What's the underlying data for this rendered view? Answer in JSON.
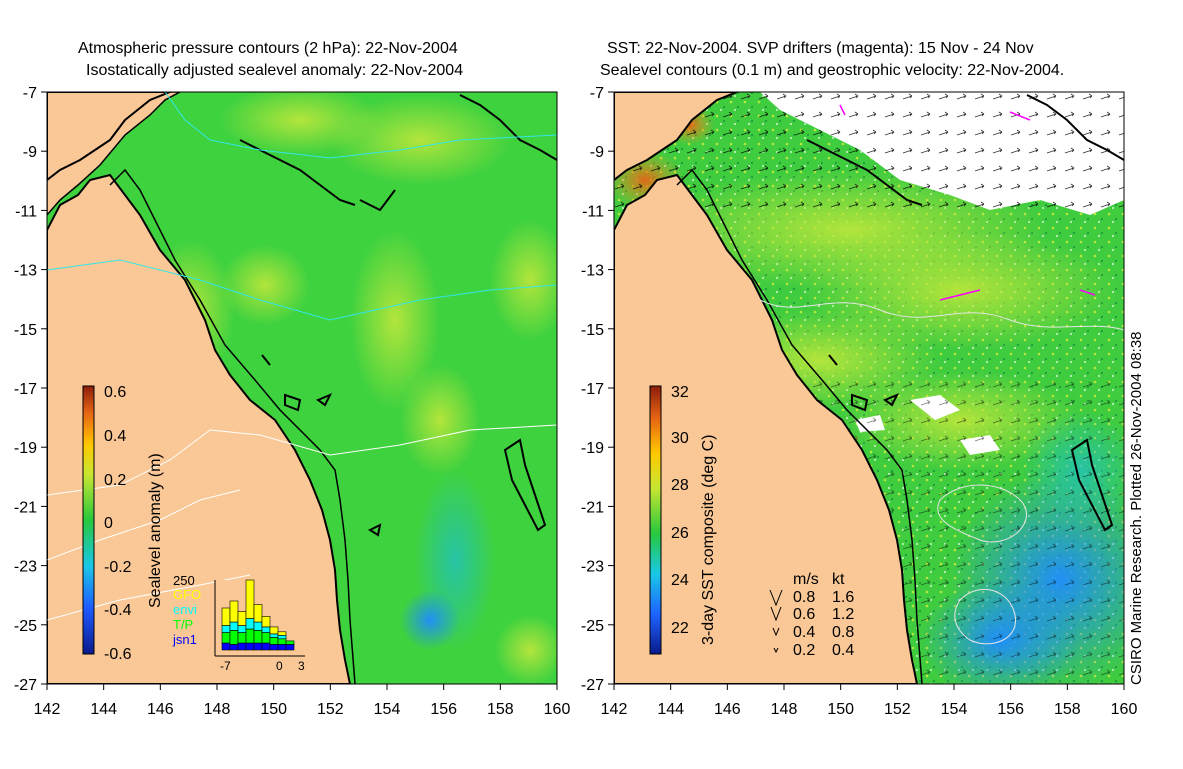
{
  "left_panel": {
    "title_line1": "Atmospheric pressure contours (2 hPa): 22-Nov-2004",
    "title_line2": "Isostatically adjusted sealevel anomaly: 22-Nov-2004",
    "colorbar": {
      "label": "Sealevel anomaly (m)",
      "ticks": [
        "0.6",
        "0.4",
        "0.2",
        "0",
        "-0.2",
        "-0.4",
        "-0.6"
      ]
    },
    "inset": {
      "ymax_label": "250",
      "legend": [
        {
          "label": "GFO",
          "color": "#ffff00"
        },
        {
          "label": "envi",
          "color": "#00ffff"
        },
        {
          "label": "T/P",
          "color": "#00ff00"
        },
        {
          "label": "jsn1",
          "color": "#0000ff"
        }
      ],
      "xticks": [
        "-7",
        "0",
        "3"
      ]
    }
  },
  "right_panel": {
    "title_line1": "SST: 22-Nov-2004. SVP drifters (magenta): 15 Nov - 24 Nov",
    "title_line2": "Sealevel contours (0.1 m) and geostrophic velocity: 22-Nov-2004.",
    "colorbar": {
      "label": "3-day SST composite (deg C)",
      "ticks": [
        "32",
        "30",
        "28",
        "26",
        "24",
        "22"
      ]
    },
    "velocity_legend": {
      "header_ms": "m/s",
      "header_kt": "kt",
      "rows": [
        {
          "ms": "0.8",
          "kt": "1.6"
        },
        {
          "ms": "0.6",
          "kt": "1.2"
        },
        {
          "ms": "0.4",
          "kt": "0.8"
        },
        {
          "ms": "0.2",
          "kt": "0.4"
        }
      ]
    }
  },
  "axes": {
    "lon_ticks": [
      "142",
      "144",
      "146",
      "148",
      "150",
      "152",
      "154",
      "156",
      "158",
      "160"
    ],
    "lat_ticks": [
      "-7",
      "-9",
      "-11",
      "-13",
      "-15",
      "-17",
      "-19",
      "-21",
      "-23",
      "-25",
      "-27"
    ]
  },
  "side_note": "CSIRO Marine Research. Plotted 26-Nov-2004 08:38",
  "colors": {
    "land": "#fac896",
    "sea_green": "#3fd23f",
    "sea_yellow": "#b9e63c",
    "sea_blue": "#1e8cff",
    "coast": "#000000"
  }
}
